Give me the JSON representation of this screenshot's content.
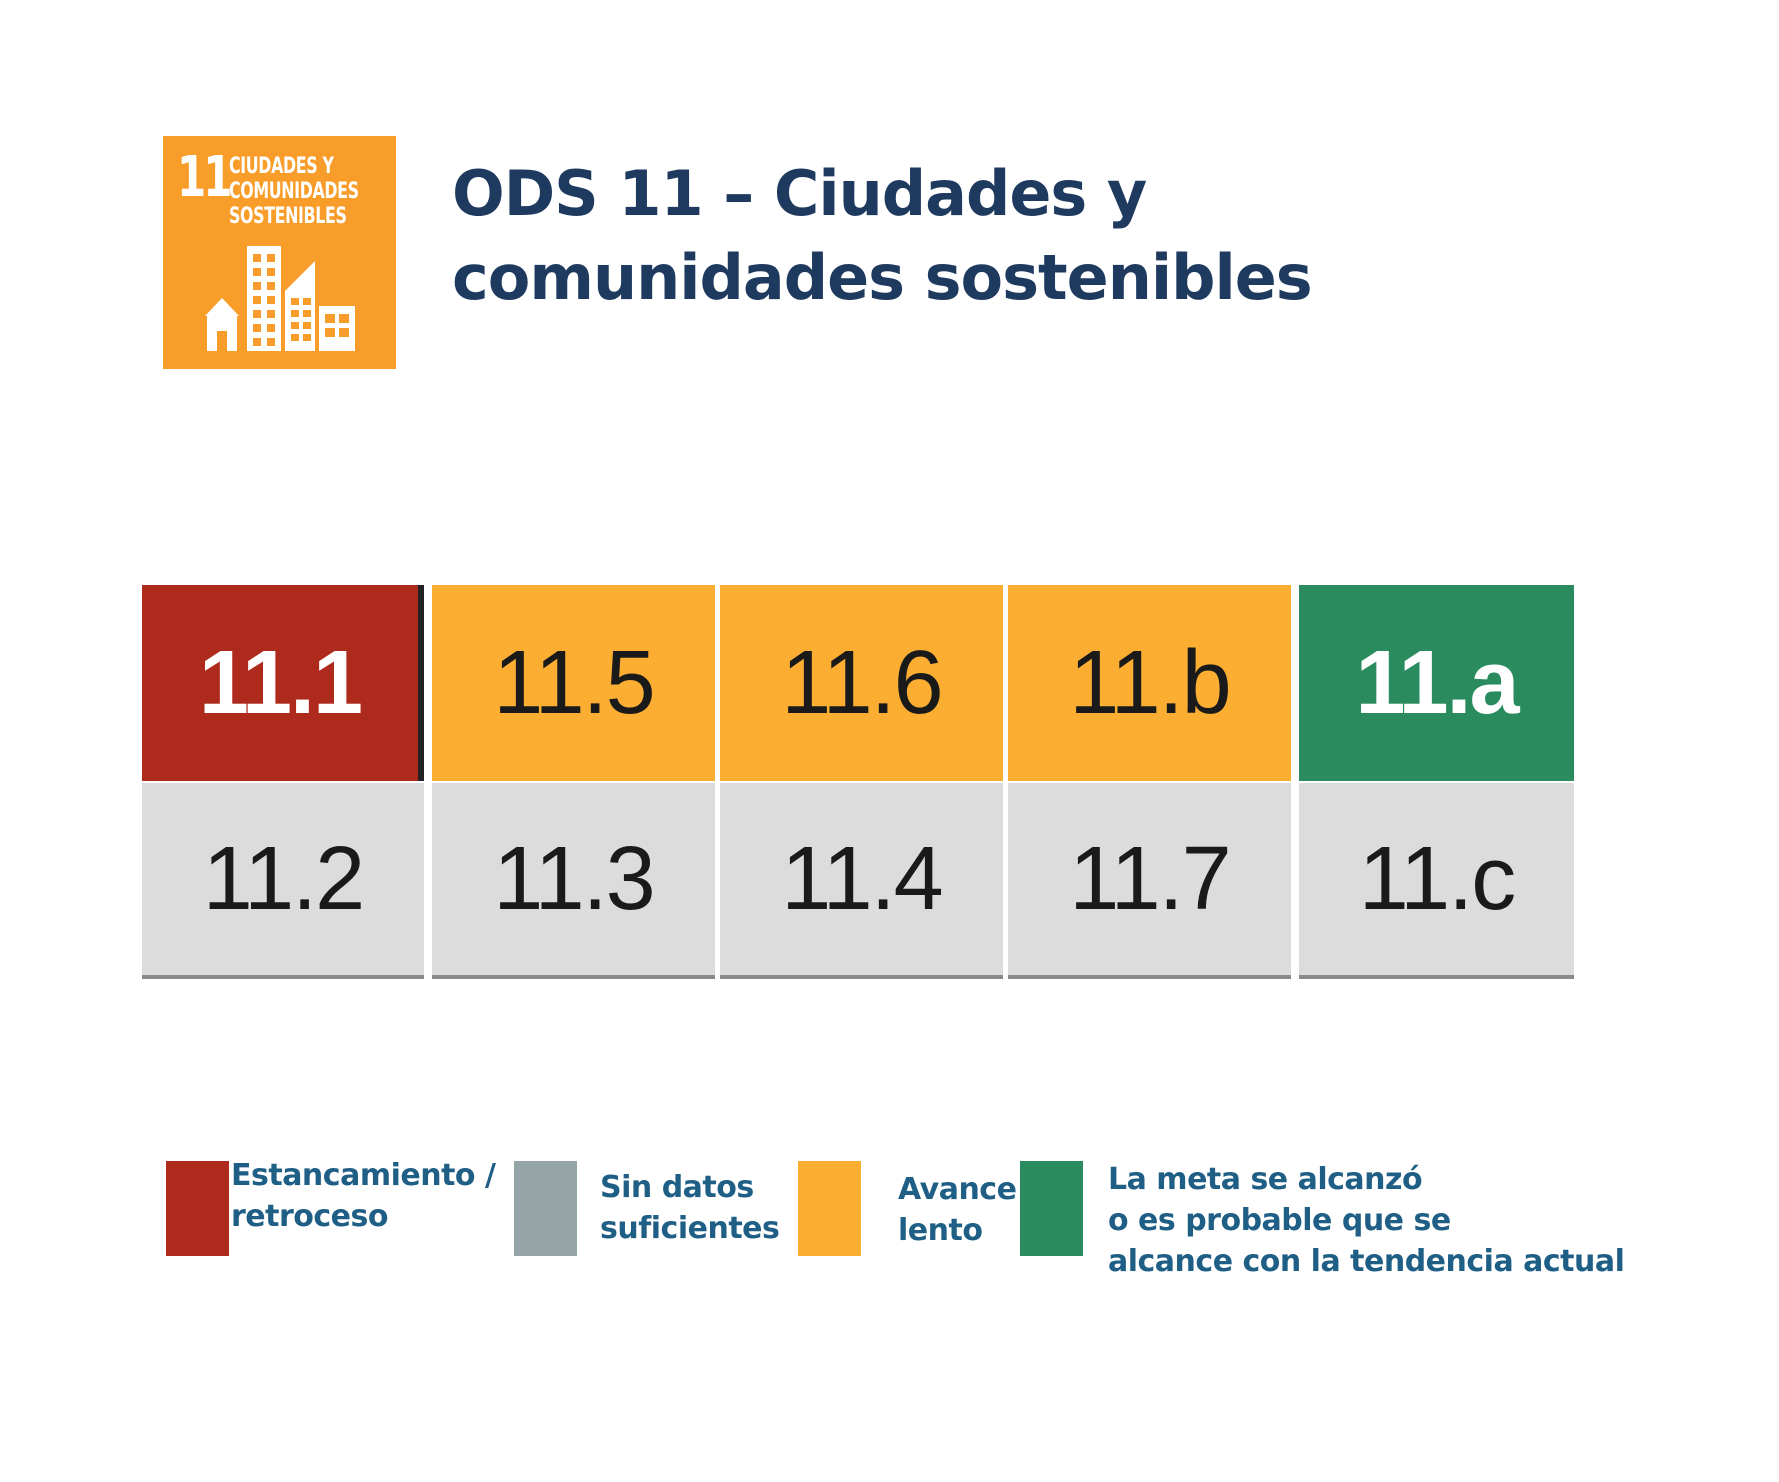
{
  "logo": {
    "number": "11",
    "text": "CIUDADES Y\nCOMUNIDADES\nSOSTENIBLES",
    "color": "#f89d2a",
    "icon": "city-buildings-icon"
  },
  "title": "ODS 11 – Ciudades y comunidades sostenibles",
  "colors": {
    "red": "#ae2a1c",
    "orange": "#fbae32",
    "green": "#2a8c5e",
    "gray": "#dcdcdc",
    "legend_gray": "#95a4a6"
  },
  "targets": {
    "top_row": [
      {
        "label": "11.1",
        "status": "red"
      },
      {
        "label": "11.5",
        "status": "orange"
      },
      {
        "label": "11.6",
        "status": "orange"
      },
      {
        "label": "11.b",
        "status": "orange"
      },
      {
        "label": "11.a",
        "status": "green"
      }
    ],
    "bottom_row": [
      {
        "label": "11.2",
        "status": "gray"
      },
      {
        "label": "11.3",
        "status": "gray"
      },
      {
        "label": "11.4",
        "status": "gray"
      },
      {
        "label": "11.7",
        "status": "gray"
      },
      {
        "label": "11.c",
        "status": "gray"
      }
    ]
  },
  "legend": [
    {
      "label": "Estancamiento /\nretroceso",
      "color": "#ae2a1c"
    },
    {
      "label": "Sin datos\nsuficientes",
      "color": "#95a4a6"
    },
    {
      "label": "Avance\nlento",
      "color": "#fbae32"
    },
    {
      "label": "La meta se alcanzó\no es probable que se\nalcance con la tendencia actual",
      "color": "#2a8c5e"
    }
  ]
}
